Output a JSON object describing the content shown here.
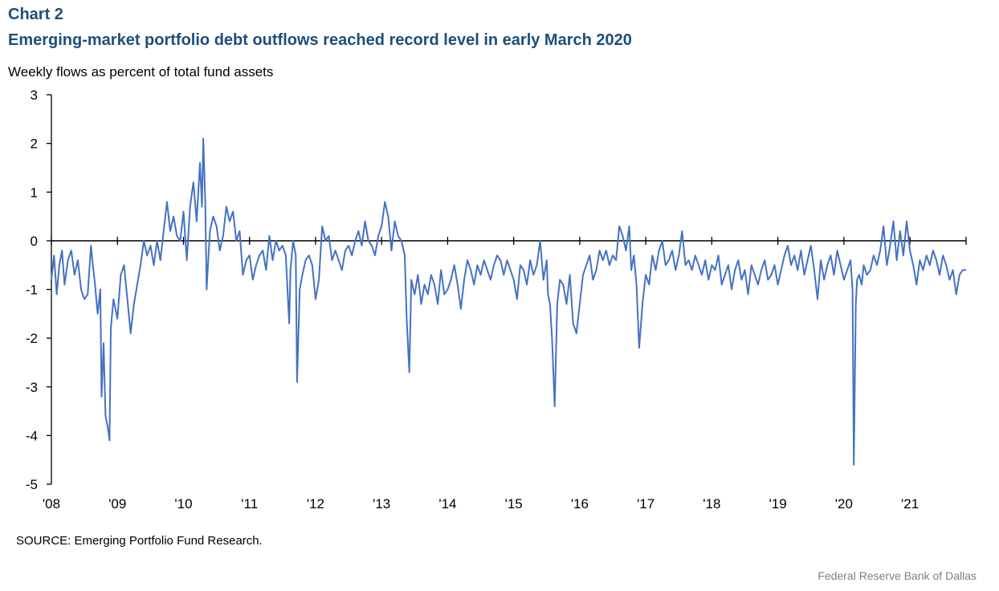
{
  "header": {
    "chart_label": "Chart 2",
    "title": "Emerging-market portfolio debt outflows reached record level in early March 2020"
  },
  "footer": {
    "source": "SOURCE: Emerging Portfolio Fund Research.",
    "credit": "Federal Reserve Bank of Dallas"
  },
  "colors": {
    "title": "#1f4e79",
    "line": "#4472c4",
    "credit": "#7f7f7f"
  },
  "chart_data": {
    "type": "line",
    "title": "Emerging-market portfolio debt outflows reached record level in early March 2020",
    "ylabel": "Weekly flows as percent of total fund assets",
    "xlabel": "",
    "ylim": [
      -5,
      3
    ],
    "yticks": [
      "3",
      "2",
      "1",
      "0",
      "-1",
      "-2",
      "-3",
      "-4",
      "-5"
    ],
    "xlim": [
      2008.0,
      2021.85
    ],
    "xticks": [
      "'08",
      "'09",
      "'10",
      "'11",
      "'12",
      "'13",
      "'14",
      "'15",
      "'16",
      "'17",
      "'18",
      "'19",
      "'20",
      "'21"
    ],
    "zero_line": true,
    "grid": false,
    "legend": "none",
    "series": [
      {
        "color": "#4472c4",
        "x": [
          2008.0,
          2008.04,
          2008.08,
          2008.12,
          2008.16,
          2008.2,
          2008.25,
          2008.3,
          2008.35,
          2008.4,
          2008.45,
          2008.5,
          2008.55,
          2008.6,
          2008.62,
          2008.66,
          2008.7,
          2008.74,
          2008.76,
          2008.79,
          2008.82,
          2008.85,
          2008.88,
          2008.9,
          2008.94,
          2009.0,
          2009.05,
          2009.1,
          2009.15,
          2009.2,
          2009.25,
          2009.3,
          2009.35,
          2009.4,
          2009.45,
          2009.5,
          2009.55,
          2009.6,
          2009.65,
          2009.7,
          2009.75,
          2009.8,
          2009.85,
          2009.9,
          2009.95,
          2010.0,
          2010.05,
          2010.1,
          2010.15,
          2010.2,
          2010.25,
          2010.28,
          2010.3,
          2010.33,
          2010.35,
          2010.4,
          2010.45,
          2010.5,
          2010.55,
          2010.6,
          2010.65,
          2010.7,
          2010.75,
          2010.8,
          2010.85,
          2010.9,
          2010.95,
          2011.0,
          2011.05,
          2011.1,
          2011.15,
          2011.2,
          2011.25,
          2011.3,
          2011.35,
          2011.4,
          2011.45,
          2011.5,
          2011.55,
          2011.6,
          2011.62,
          2011.66,
          2011.7,
          2011.72,
          2011.76,
          2011.8,
          2011.85,
          2011.9,
          2011.95,
          2012.0,
          2012.05,
          2012.1,
          2012.15,
          2012.2,
          2012.25,
          2012.3,
          2012.35,
          2012.4,
          2012.45,
          2012.5,
          2012.55,
          2012.6,
          2012.65,
          2012.7,
          2012.75,
          2012.8,
          2012.85,
          2012.9,
          2012.95,
          2013.0,
          2013.05,
          2013.1,
          2013.15,
          2013.2,
          2013.25,
          2013.3,
          2013.35,
          2013.38,
          2013.42,
          2013.45,
          2013.5,
          2013.55,
          2013.6,
          2013.65,
          2013.7,
          2013.75,
          2013.8,
          2013.85,
          2013.9,
          2013.95,
          2014.0,
          2014.05,
          2014.1,
          2014.15,
          2014.2,
          2014.25,
          2014.3,
          2014.35,
          2014.4,
          2014.45,
          2014.5,
          2014.55,
          2014.6,
          2014.65,
          2014.7,
          2014.75,
          2014.8,
          2014.85,
          2014.9,
          2014.95,
          2015.0,
          2015.05,
          2015.1,
          2015.15,
          2015.2,
          2015.25,
          2015.3,
          2015.35,
          2015.4,
          2015.45,
          2015.5,
          2015.52,
          2015.55,
          2015.58,
          2015.62,
          2015.66,
          2015.7,
          2015.75,
          2015.8,
          2015.85,
          2015.9,
          2015.95,
          2016.0,
          2016.05,
          2016.1,
          2016.15,
          2016.2,
          2016.25,
          2016.3,
          2016.35,
          2016.4,
          2016.45,
          2016.5,
          2016.55,
          2016.6,
          2016.65,
          2016.7,
          2016.75,
          2016.78,
          2016.82,
          2016.86,
          2016.9,
          2016.95,
          2017.0,
          2017.05,
          2017.1,
          2017.15,
          2017.2,
          2017.25,
          2017.3,
          2017.35,
          2017.4,
          2017.45,
          2017.5,
          2017.55,
          2017.6,
          2017.65,
          2017.7,
          2017.75,
          2017.8,
          2017.85,
          2017.9,
          2017.95,
          2018.0,
          2018.05,
          2018.1,
          2018.15,
          2018.2,
          2018.25,
          2018.3,
          2018.35,
          2018.4,
          2018.45,
          2018.5,
          2018.55,
          2018.6,
          2018.65,
          2018.7,
          2018.75,
          2018.8,
          2018.85,
          2018.9,
          2018.95,
          2019.0,
          2019.05,
          2019.1,
          2019.15,
          2019.2,
          2019.25,
          2019.3,
          2019.35,
          2019.4,
          2019.45,
          2019.5,
          2019.55,
          2019.6,
          2019.65,
          2019.7,
          2019.75,
          2019.8,
          2019.85,
          2019.9,
          2019.95,
          2020.0,
          2020.05,
          2020.1,
          2020.13,
          2020.15,
          2020.18,
          2020.2,
          2020.23,
          2020.27,
          2020.3,
          2020.35,
          2020.4,
          2020.45,
          2020.5,
          2020.55,
          2020.6,
          2020.65,
          2020.7,
          2020.75,
          2020.8,
          2020.85,
          2020.9,
          2020.95,
          2021.0,
          2021.05,
          2021.1,
          2021.15,
          2021.2,
          2021.25,
          2021.3,
          2021.35,
          2021.4,
          2021.45,
          2021.5,
          2021.55,
          2021.6,
          2021.65,
          2021.7,
          2021.75,
          2021.8,
          2021.85
        ],
        "y": [
          -0.8,
          -0.3,
          -1.1,
          -0.5,
          -0.2,
          -0.9,
          -0.4,
          -0.2,
          -0.7,
          -0.4,
          -1.0,
          -1.2,
          -1.1,
          -0.1,
          -0.4,
          -0.9,
          -1.5,
          -1.0,
          -3.2,
          -2.1,
          -3.6,
          -3.8,
          -4.1,
          -1.8,
          -1.2,
          -1.6,
          -0.7,
          -0.5,
          -1.2,
          -1.9,
          -1.3,
          -0.9,
          -0.5,
          0.0,
          -0.3,
          -0.1,
          -0.5,
          0.0,
          -0.4,
          0.2,
          0.8,
          0.2,
          0.5,
          0.1,
          0.0,
          0.6,
          -0.4,
          0.7,
          1.2,
          0.4,
          1.6,
          0.7,
          2.1,
          0.8,
          -1.0,
          0.2,
          0.5,
          0.3,
          -0.2,
          0.1,
          0.7,
          0.4,
          0.6,
          0.0,
          0.2,
          -0.7,
          -0.4,
          -0.3,
          -0.8,
          -0.5,
          -0.3,
          -0.2,
          -0.6,
          0.1,
          -0.4,
          0.0,
          -0.2,
          -0.1,
          -0.3,
          -1.7,
          -0.6,
          0.0,
          -0.3,
          -2.9,
          -1.0,
          -0.7,
          -0.4,
          -0.3,
          -0.5,
          -1.2,
          -0.8,
          0.3,
          0.0,
          0.1,
          -0.4,
          -0.2,
          -0.4,
          -0.6,
          -0.2,
          -0.1,
          -0.3,
          0.0,
          0.2,
          -0.1,
          0.4,
          0.0,
          -0.1,
          -0.3,
          0.1,
          0.3,
          0.8,
          0.5,
          -0.2,
          0.4,
          0.1,
          0.0,
          -0.3,
          -1.6,
          -2.7,
          -0.8,
          -1.1,
          -0.7,
          -1.3,
          -0.9,
          -1.1,
          -0.7,
          -0.9,
          -1.3,
          -0.6,
          -1.1,
          -1.0,
          -0.8,
          -0.5,
          -0.9,
          -1.4,
          -0.8,
          -0.4,
          -0.6,
          -0.9,
          -0.5,
          -0.7,
          -0.4,
          -0.6,
          -0.8,
          -0.5,
          -0.3,
          -0.4,
          -0.7,
          -0.4,
          -0.6,
          -0.8,
          -1.2,
          -0.5,
          -0.6,
          -0.9,
          -0.4,
          -0.7,
          -0.5,
          0.0,
          -0.8,
          -0.4,
          -1.1,
          -1.3,
          -2.0,
          -3.4,
          -1.3,
          -0.8,
          -0.9,
          -1.3,
          -0.7,
          -1.7,
          -1.9,
          -1.3,
          -0.7,
          -0.5,
          -0.3,
          -0.8,
          -0.6,
          -0.2,
          -0.4,
          -0.2,
          -0.5,
          -0.3,
          -0.4,
          0.3,
          0.1,
          -0.2,
          0.3,
          -0.6,
          -0.3,
          -0.9,
          -2.2,
          -1.3,
          -0.7,
          -0.9,
          -0.3,
          -0.6,
          -0.2,
          0.0,
          -0.5,
          -0.4,
          -0.2,
          -0.6,
          -0.3,
          0.2,
          -0.5,
          -0.4,
          -0.6,
          -0.3,
          -0.5,
          -0.7,
          -0.4,
          -0.8,
          -0.5,
          -0.6,
          -0.3,
          -0.9,
          -0.7,
          -0.5,
          -1.0,
          -0.6,
          -0.4,
          -0.8,
          -0.6,
          -1.1,
          -0.5,
          -0.7,
          -0.9,
          -0.6,
          -0.4,
          -0.8,
          -0.7,
          -0.5,
          -0.9,
          -0.6,
          -0.3,
          -0.1,
          -0.5,
          -0.3,
          -0.6,
          -0.2,
          -0.7,
          -0.4,
          -0.1,
          -0.6,
          -1.2,
          -0.4,
          -0.8,
          -0.5,
          -0.3,
          -0.7,
          -0.2,
          -0.5,
          -0.8,
          -0.6,
          -0.4,
          -1.0,
          -4.6,
          -1.3,
          -0.8,
          -0.7,
          -0.9,
          -0.5,
          -0.7,
          -0.6,
          -0.3,
          -0.5,
          -0.2,
          0.3,
          -0.5,
          -0.1,
          0.4,
          -0.4,
          0.2,
          -0.3,
          0.4,
          -0.2,
          -0.5,
          -0.9,
          -0.4,
          -0.6,
          -0.3,
          -0.5,
          -0.2,
          -0.4,
          -0.7,
          -0.3,
          -0.5,
          -0.8,
          -0.6,
          -1.1,
          -0.7,
          -0.6,
          -0.6
        ]
      }
    ]
  }
}
